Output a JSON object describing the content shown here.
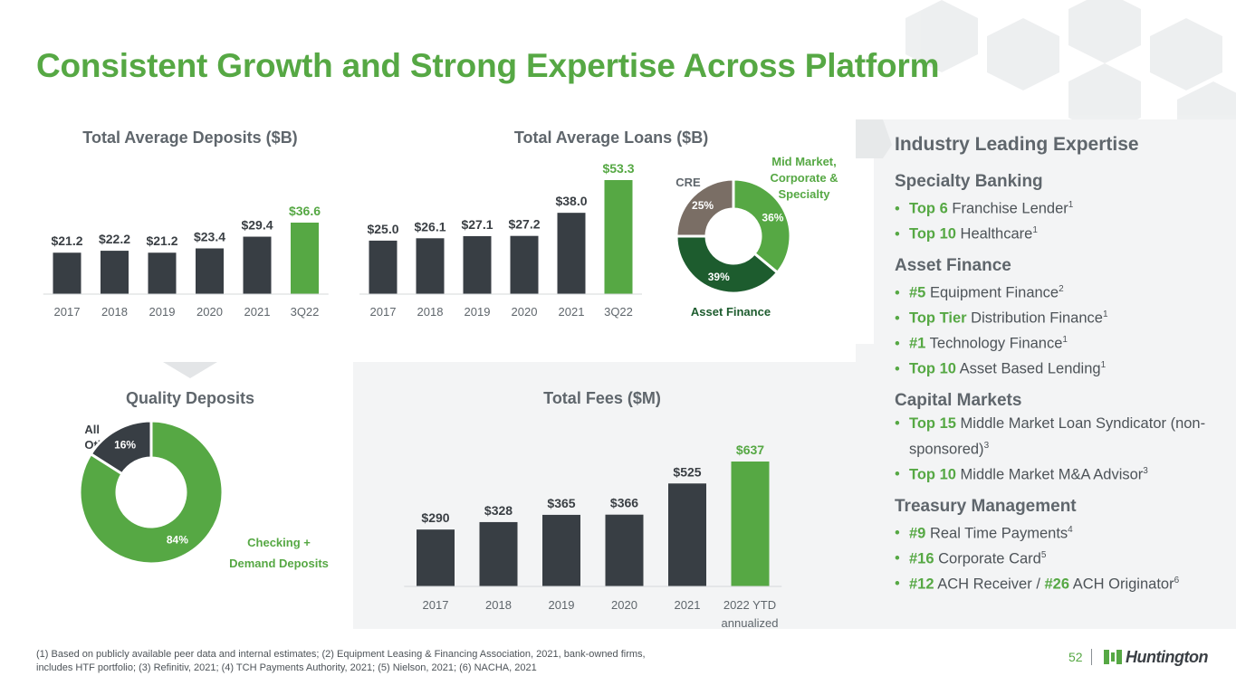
{
  "title": "Consistent Growth and Strong Expertise Across Platform",
  "colors": {
    "green": "#56a844",
    "dark": "#383e44",
    "darkgreen": "#1d5c2e",
    "cre": "#7a6e65",
    "gray_text": "#5f666c"
  },
  "chart_data": [
    {
      "type": "bar",
      "title": "Total Average Deposits ($B)",
      "categories": [
        "2017",
        "2018",
        "2019",
        "2020",
        "2021",
        "3Q22"
      ],
      "values": [
        21.2,
        22.2,
        21.2,
        23.4,
        29.4,
        36.6
      ],
      "labels": [
        "$21.2",
        "$22.2",
        "$21.2",
        "$23.4",
        "$29.4",
        "$36.6"
      ],
      "highlight_last": true
    },
    {
      "type": "bar",
      "title": "Total Average Loans ($B)",
      "categories": [
        "2017",
        "2018",
        "2019",
        "2020",
        "2021",
        "3Q22"
      ],
      "values": [
        25.0,
        26.1,
        27.1,
        27.2,
        38.0,
        53.3
      ],
      "labels": [
        "$25.0",
        "$26.1",
        "$27.1",
        "$27.2",
        "$38.0",
        "$53.3"
      ],
      "highlight_last": true
    },
    {
      "type": "pie",
      "subtype": "donut",
      "slices": [
        {
          "name": "Mid Market, Corporate & Specialty",
          "value": 36,
          "label": "36%",
          "color": "#56a844"
        },
        {
          "name": "Asset Finance",
          "value": 39,
          "label": "39%",
          "color": "#1d5c2e"
        },
        {
          "name": "CRE",
          "value": 25,
          "label": "25%",
          "color": "#7a6e65"
        }
      ]
    },
    {
      "type": "pie",
      "subtype": "donut",
      "title": "Quality Deposits",
      "slices": [
        {
          "name": "Checking + Demand Deposits",
          "value": 84,
          "label": "84%",
          "color": "#56a844"
        },
        {
          "name": "All Other",
          "value": 16,
          "label": "16%",
          "color": "#383e44"
        }
      ]
    },
    {
      "type": "bar",
      "title": "Total Fees ($M)",
      "categories": [
        "2017",
        "2018",
        "2019",
        "2020",
        "2021",
        "2022 YTD annualized"
      ],
      "values": [
        290,
        328,
        365,
        366,
        525,
        637
      ],
      "labels": [
        "$290",
        "$328",
        "$365",
        "$366",
        "$525",
        "$637"
      ],
      "highlight_last": true
    }
  ],
  "donut_labels": {
    "loans_mid": [
      "Mid Market,",
      "Corporate &",
      "Specialty"
    ],
    "loans_cre": "CRE",
    "loans_asset": "Asset Finance",
    "dep_all": [
      "All",
      "Other"
    ],
    "dep_checking": [
      "Checking +",
      "Demand Deposits"
    ],
    "fees_cat_last": [
      "2022 YTD",
      "annualized"
    ]
  },
  "expertise": {
    "heading": "Industry Leading Expertise",
    "sections": [
      {
        "title": "Specialty Banking",
        "items": [
          {
            "bold": "Top 6",
            "text": " Franchise Lender",
            "sup": "1"
          },
          {
            "bold": "Top 10",
            "text": " Healthcare",
            "sup": "1"
          }
        ]
      },
      {
        "title": "Asset Finance",
        "items": [
          {
            "bold": "#5",
            "text": " Equipment Finance",
            "sup": "2"
          },
          {
            "bold": "Top Tier",
            "text": " Distribution Finance",
            "sup": "1"
          },
          {
            "bold": "#1",
            "text": " Technology Finance",
            "sup": "1"
          },
          {
            "bold": "Top 10",
            "text": " Asset Based Lending",
            "sup": "1"
          }
        ]
      },
      {
        "title": "Capital Markets",
        "items": [
          {
            "bold": "Top 15",
            "text": " Middle Market Loan Syndicator (non-sponsored)",
            "sup": "3"
          },
          {
            "bold": "Top 10",
            "text": " Middle Market M&A Advisor",
            "sup": "3"
          }
        ]
      },
      {
        "title": "Treasury Management",
        "items": [
          {
            "bold": "#9",
            "text": " Real Time Payments",
            "sup": "4"
          },
          {
            "bold": "#16",
            "text": " Corporate Card",
            "sup": "5"
          },
          {
            "bold": "#12",
            "text": " ACH Receiver / ",
            "bold2": "#26",
            "text2": " ACH Originator",
            "sup": "6"
          }
        ]
      }
    ]
  },
  "footnote": "(1) Based on publicly available peer data and internal estimates; (2) Equipment Leasing & Financing Association, 2021, bank-owned firms, includes HTF portfolio; (3) Refinitiv, 2021; (4) TCH Payments Authority, 2021; (5) Nielson, 2021; (6) NACHA, 2021",
  "page_number": "52",
  "logo": {
    "text": "Huntington",
    "icon": "huntington-logo-icon"
  }
}
